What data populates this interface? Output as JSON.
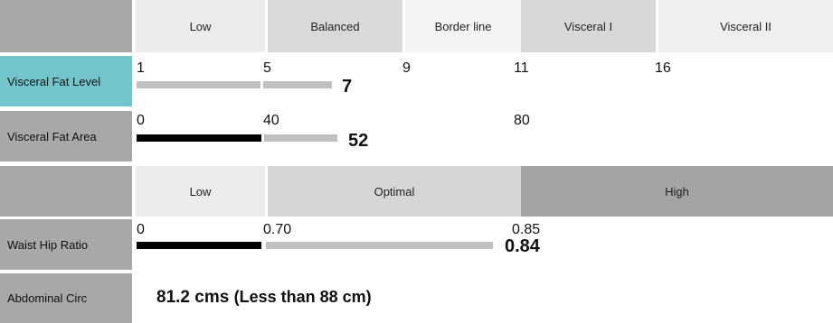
{
  "header_row1": {
    "low": "Low",
    "balanced": "Balanced",
    "borderline": "Border line",
    "visceral1": "Visceral I",
    "visceral2": "Visceral II"
  },
  "visceral_fat_level": {
    "label": "Visceral Fat Level",
    "ticks": [
      "1",
      "5",
      "9",
      "11",
      "16"
    ],
    "value": "7"
  },
  "visceral_fat_area": {
    "label": "Visceral Fat Area",
    "ticks": [
      "0",
      "40",
      "80"
    ],
    "value": "52"
  },
  "header_row2": {
    "low": "Low",
    "optimal": "Optimal",
    "high": "High"
  },
  "waist_hip_ratio": {
    "label": "Waist Hip Ratio",
    "ticks": [
      "0",
      "0.70",
      "0.85"
    ],
    "value": "0.84"
  },
  "abdominal_circ": {
    "label": "Abdominal Circ",
    "value": "81.2 cms",
    "note": "(Less than 88 cm)"
  },
  "colors": {
    "label_gray": "#a9a7a7",
    "label_teal": "#72c6cb",
    "bar_gray": "#c0c0c0",
    "bar_black": "#000000"
  }
}
